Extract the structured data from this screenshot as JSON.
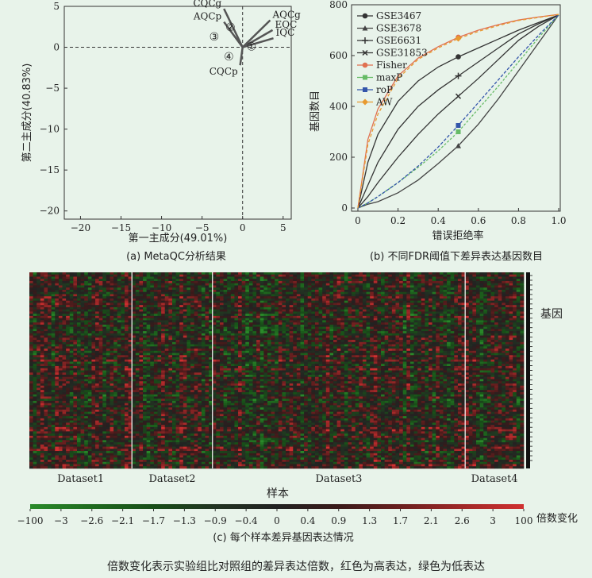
{
  "chart_data": [
    {
      "type": "scatter",
      "subplot_label": "(a) MetaQC分析结果",
      "xlabel": "第一主成分(49.01%)",
      "ylabel": "第二主成分(40.83%)",
      "xlim": [
        -22,
        6
      ],
      "ylim": [
        -21,
        5
      ],
      "xticks": [
        -20,
        -15,
        -10,
        -5,
        0,
        5
      ],
      "yticks": [
        5,
        0,
        -5,
        -10,
        -15,
        -20
      ],
      "xtick_labels": [
        "−20",
        "−15",
        "−10",
        "−5",
        "0",
        "5"
      ],
      "ytick_labels": [
        "5",
        "0",
        "−5",
        "−10",
        "−15",
        "−20"
      ],
      "vectors": [
        {
          "label": "CQCg",
          "x": -2.3,
          "y": 4.7
        },
        {
          "label": "AQCp",
          "x": -2.3,
          "y": 3.1
        },
        {
          "label": "AQCg",
          "x": 3.4,
          "y": 3.3
        },
        {
          "label": "EQC",
          "x": 3.7,
          "y": 2.1
        },
        {
          "label": "IQC",
          "x": 3.8,
          "y": 1.1
        },
        {
          "label": "CQCp",
          "x": -0.3,
          "y": -2.2
        }
      ],
      "point_markers": [
        {
          "label": "③",
          "x": -3.5,
          "y": 1.3
        },
        {
          "label": "②",
          "x": -1.5,
          "y": 2.5
        },
        {
          "label": "①",
          "x": 1.1,
          "y": 0.1
        },
        {
          "label": "④",
          "x": -1.7,
          "y": -1.1
        }
      ]
    },
    {
      "type": "line",
      "subplot_label": "(b) 不同FDR阈值下差异表达基因数目",
      "xlabel": "错误拒绝率",
      "ylabel": "基因数目",
      "xlim": [
        0,
        1.0
      ],
      "ylim": [
        0,
        800
      ],
      "xticks": [
        0,
        0.2,
        0.4,
        0.6,
        0.8,
        1.0
      ],
      "yticks": [
        0,
        200,
        400,
        600,
        800
      ],
      "xtick_labels": [
        "0",
        "0.2",
        "0.4",
        "0.6",
        "0.8",
        "1.0"
      ],
      "ytick_labels": [
        "0",
        "200",
        "400",
        "600",
        "800"
      ],
      "legend_position": "top-left",
      "x": [
        0,
        0.05,
        0.1,
        0.2,
        0.3,
        0.4,
        0.5,
        0.6,
        0.7,
        0.8,
        0.9,
        1.0
      ],
      "series": [
        {
          "name": "GSE3467",
          "marker": "o",
          "color": "#333333",
          "values": [
            0,
            180,
            290,
            420,
            500,
            555,
            595,
            630,
            665,
            700,
            730,
            760
          ]
        },
        {
          "name": "GSE3678",
          "marker": "^",
          "color": "#444444",
          "values": [
            0,
            15,
            25,
            60,
            110,
            175,
            245,
            330,
            430,
            540,
            650,
            760
          ]
        },
        {
          "name": "GSE6631",
          "marker": "+",
          "color": "#333333",
          "values": [
            0,
            90,
            180,
            310,
            400,
            465,
            520,
            575,
            630,
            685,
            725,
            760
          ]
        },
        {
          "name": "GSE31853",
          "marker": "x",
          "color": "#333333",
          "values": [
            0,
            45,
            100,
            200,
            290,
            370,
            440,
            510,
            585,
            660,
            715,
            760
          ]
        },
        {
          "name": "Fisher",
          "marker": "o",
          "color": "#e07050",
          "values": [
            0,
            270,
            390,
            520,
            590,
            635,
            672,
            700,
            722,
            740,
            752,
            762
          ]
        },
        {
          "name": "maxP",
          "marker": "s",
          "color": "#66bb66",
          "values": [
            0,
            20,
            45,
            100,
            160,
            225,
            300,
            390,
            480,
            575,
            670,
            760
          ]
        },
        {
          "name": "roP",
          "marker": "s",
          "color": "#3355aa",
          "values": [
            0,
            20,
            45,
            100,
            165,
            240,
            325,
            415,
            505,
            595,
            680,
            760
          ]
        },
        {
          "name": "AW",
          "marker": "D",
          "color": "#e89a30",
          "values": [
            0,
            250,
            370,
            510,
            585,
            630,
            667,
            695,
            718,
            738,
            750,
            762
          ]
        }
      ]
    },
    {
      "type": "heatmap",
      "subplot_label": "(c) 每个样本差异基因表达情况",
      "xlabel": "样本",
      "ylabel": "基因",
      "groups": [
        "Dataset1",
        "Dataset2",
        "Dataset3",
        "Dataset4"
      ],
      "group_sample_counts": [
        28,
        22,
        69,
        16
      ],
      "colorbar_title": "倍数变化",
      "colorbar_ticks": [
        "−100",
        "−3",
        "−2.6",
        "−2.1",
        "−1.7",
        "−1.3",
        "−0.9",
        "−0.4",
        "0",
        "0.4",
        "0.9",
        "1.3",
        "1.7",
        "2.1",
        "2.6",
        "3",
        "100"
      ],
      "colorbar_colors": [
        "#2a8a2a",
        "#1f6a1f",
        "#184d18",
        "#223322",
        "#222222",
        "#3a1a1a",
        "#6a1f1f",
        "#a02828",
        "#d03030"
      ]
    }
  ],
  "caption": "倍数变化表示实验组比对照组的差异表达倍数，红色为高表达，绿色为低表达"
}
